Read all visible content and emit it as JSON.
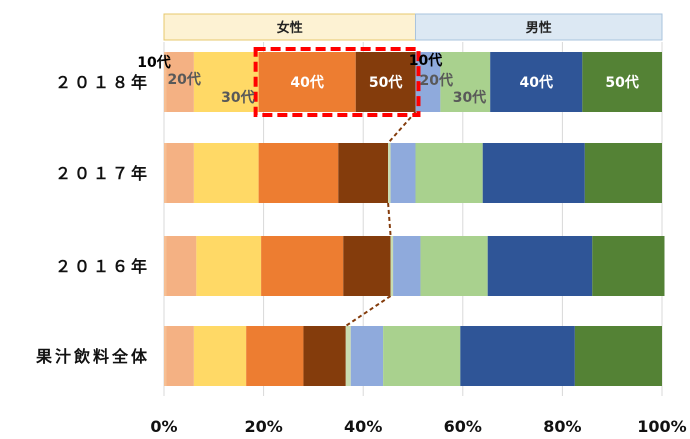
{
  "chart_data": {
    "type": "bar",
    "orientation": "horizontal",
    "stacked": true,
    "normalized": true,
    "group_headers": [
      {
        "label": "女性",
        "from": 0,
        "to": 50.5,
        "fill": "#fdf2d3",
        "stroke": "#e7c86c"
      },
      {
        "label": "男性",
        "from": 50.5,
        "to": 100,
        "fill": "#dce8f3",
        "stroke": "#a9c3de"
      }
    ],
    "categories": [
      "２０１８年",
      "２０１７年",
      "２０１６年",
      "果汁飲料全体"
    ],
    "series": [
      {
        "key": "f10",
        "color": "#f6bf93",
        "values": [
          0.5,
          0.5,
          0.5,
          0.5
        ]
      },
      {
        "key": "f20",
        "color": "#f4b183",
        "values": [
          5.5,
          5.5,
          6.0,
          5.5
        ]
      },
      {
        "key": "f30",
        "color": "#ffd966",
        "values": [
          13.0,
          13.0,
          13.0,
          10.5
        ]
      },
      {
        "key": "f40",
        "color": "#ed7d31",
        "values": [
          19.5,
          16.0,
          16.5,
          11.5
        ]
      },
      {
        "key": "f50",
        "color": "#843c0c",
        "values": [
          12.0,
          10.0,
          9.5,
          8.5
        ]
      },
      {
        "key": "m10",
        "color": "#c9dcb0",
        "values": [
          0.0,
          0.5,
          0.5,
          1.0
        ]
      },
      {
        "key": "m20",
        "color": "#8faadc",
        "values": [
          5.0,
          5.0,
          5.5,
          6.5
        ]
      },
      {
        "key": "m30",
        "color": "#a9d18e",
        "values": [
          10.0,
          13.5,
          13.5,
          15.5
        ]
      },
      {
        "key": "m40",
        "color": "#2f5597",
        "values": [
          18.5,
          20.5,
          21.0,
          23.0
        ]
      },
      {
        "key": "m50",
        "color": "#548235",
        "values": [
          16.0,
          15.5,
          14.5,
          17.5
        ]
      }
    ],
    "x_ticks": [
      "0%",
      "20%",
      "40%",
      "60%",
      "80%",
      "100%"
    ],
    "xlim": [
      0,
      100
    ],
    "gridlines": true,
    "segment_labels": {
      "row": 0,
      "items": [
        {
          "text": "10代",
          "series": "f10",
          "color": "#000000",
          "pos": "above-left"
        },
        {
          "text": "20代",
          "series": "f20",
          "color": "#595959",
          "pos": "center"
        },
        {
          "text": "30代",
          "series": "f30",
          "color": "#595959",
          "pos": "lower-right"
        },
        {
          "text": "40代",
          "series": "f40",
          "color": "#ffffff",
          "pos": "center"
        },
        {
          "text": "50代",
          "series": "f50",
          "color": "#ffffff",
          "pos": "center"
        },
        {
          "text": "10代",
          "series": "m10",
          "color": "#000000",
          "pos": "above-left"
        },
        {
          "text": "20代",
          "series": "m20",
          "color": "#595959",
          "pos": "center-right"
        },
        {
          "text": "30代",
          "series": "m30",
          "color": "#595959",
          "pos": "lower-right"
        },
        {
          "text": "40代",
          "series": "m40",
          "color": "#ffffff",
          "pos": "center"
        },
        {
          "text": "50代",
          "series": "m50",
          "color": "#ffffff",
          "pos": "center"
        }
      ]
    },
    "highlight": {
      "row": 0,
      "series_from": "f40",
      "series_to": "f50",
      "color": "#ff0000",
      "style": "dashed"
    },
    "connector": {
      "color": "#843c0c",
      "style": "dashed",
      "at_female_total": true
    },
    "colors": {
      "grid": "#d9d9d9",
      "highlight": "#ff0000",
      "connector": "#843c0c"
    }
  }
}
